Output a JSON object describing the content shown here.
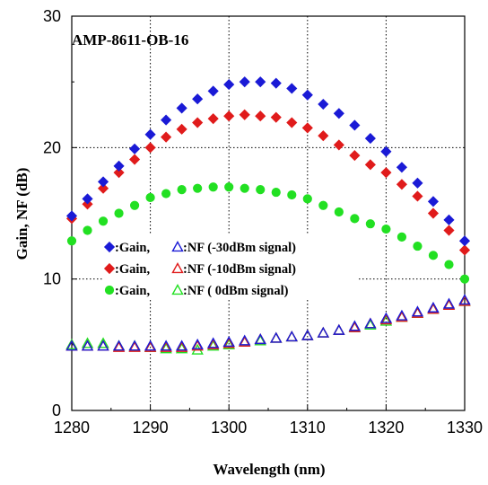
{
  "chart_data": {
    "type": "scatter",
    "title": "AMP-8611-OB-16",
    "xlabel": "Wavelength (nm)",
    "ylabel": "Gain, NF (dB)",
    "xlim": [
      1280,
      1330
    ],
    "ylim": [
      0,
      30
    ],
    "xticks": [
      "1280",
      "1290",
      "1300",
      "1310",
      "1320",
      "1330"
    ],
    "yticks": [
      "0",
      "10",
      "20",
      "30"
    ],
    "grid": true,
    "grid_style": "dotted",
    "legend_position": "center-left",
    "legend": [
      {
        "gain_label": ":Gain,",
        "nf_label": ":NF (-30dBm signal)",
        "color": "#1a1ad6"
      },
      {
        "gain_label": ":Gain,",
        "nf_label": ":NF (-10dBm signal)",
        "color": "#e01b1b"
      },
      {
        "gain_label": ":Gain,",
        "nf_label": ":NF (   0dBm signal)",
        "color": "#22e022"
      }
    ],
    "x": [
      1280,
      1282,
      1284,
      1286,
      1288,
      1290,
      1292,
      1294,
      1296,
      1298,
      1300,
      1302,
      1304,
      1306,
      1308,
      1310,
      1312,
      1314,
      1316,
      1318,
      1320,
      1322,
      1324,
      1326,
      1328,
      1330
    ],
    "series": [
      {
        "name": "Gain (-30dBm signal)",
        "marker": "diamond-filled",
        "color": "#1a1ad6",
        "values": [
          14.8,
          16.1,
          17.4,
          18.6,
          19.9,
          21.0,
          22.1,
          23.0,
          23.7,
          24.3,
          24.8,
          25.0,
          25.0,
          24.9,
          24.5,
          24.0,
          23.3,
          22.6,
          21.7,
          20.7,
          19.7,
          18.5,
          17.3,
          15.9,
          14.5,
          12.9
        ]
      },
      {
        "name": "NF (-30dBm signal)",
        "marker": "triangle-open",
        "color": "#1a1ad6",
        "values": [
          4.9,
          4.9,
          4.9,
          4.9,
          4.9,
          4.9,
          4.9,
          4.9,
          5.0,
          5.1,
          5.2,
          5.3,
          5.4,
          5.5,
          5.6,
          5.7,
          5.9,
          6.1,
          6.4,
          6.6,
          7.0,
          7.2,
          7.5,
          7.8,
          8.1,
          8.4
        ]
      },
      {
        "name": "Gain (-10dBm signal)",
        "marker": "diamond-filled",
        "color": "#e01b1b",
        "values": [
          14.6,
          15.7,
          16.9,
          18.1,
          19.1,
          20.0,
          20.8,
          21.4,
          21.9,
          22.2,
          22.4,
          22.5,
          22.4,
          22.3,
          21.9,
          21.5,
          20.9,
          20.2,
          19.4,
          18.7,
          18.1,
          17.2,
          16.3,
          15.0,
          13.7,
          12.2
        ]
      },
      {
        "name": "NF (-10dBm signal)",
        "marker": "triangle-open",
        "color": "#e01b1b",
        "values": [
          4.9,
          4.9,
          4.9,
          4.8,
          4.8,
          4.8,
          4.8,
          4.8,
          4.9,
          5.0,
          5.1,
          5.2,
          5.4,
          5.5,
          5.6,
          5.7,
          5.9,
          6.1,
          6.3,
          6.6,
          6.9,
          7.1,
          7.4,
          7.7,
          8.0,
          8.3
        ]
      },
      {
        "name": "Gain (0dBm signal)",
        "marker": "circle-filled",
        "color": "#22e022",
        "values": [
          12.9,
          13.7,
          14.4,
          15.0,
          15.6,
          16.2,
          16.5,
          16.8,
          16.9,
          17.0,
          17.0,
          16.9,
          16.8,
          16.6,
          16.4,
          16.1,
          15.6,
          15.1,
          14.6,
          14.2,
          13.8,
          13.2,
          12.5,
          11.8,
          11.1,
          10.0
        ]
      },
      {
        "name": "NF (0dBm signal)",
        "marker": "triangle-open",
        "color": "#22e022",
        "values": [
          5.0,
          5.1,
          5.1,
          4.9,
          4.9,
          4.8,
          4.7,
          4.7,
          4.6,
          4.9,
          5.0,
          5.2,
          5.3,
          5.5,
          5.6,
          5.7,
          5.9,
          6.1,
          6.3,
          6.5,
          6.8,
          7.1,
          7.4,
          7.7,
          8.0,
          8.3
        ]
      }
    ]
  }
}
